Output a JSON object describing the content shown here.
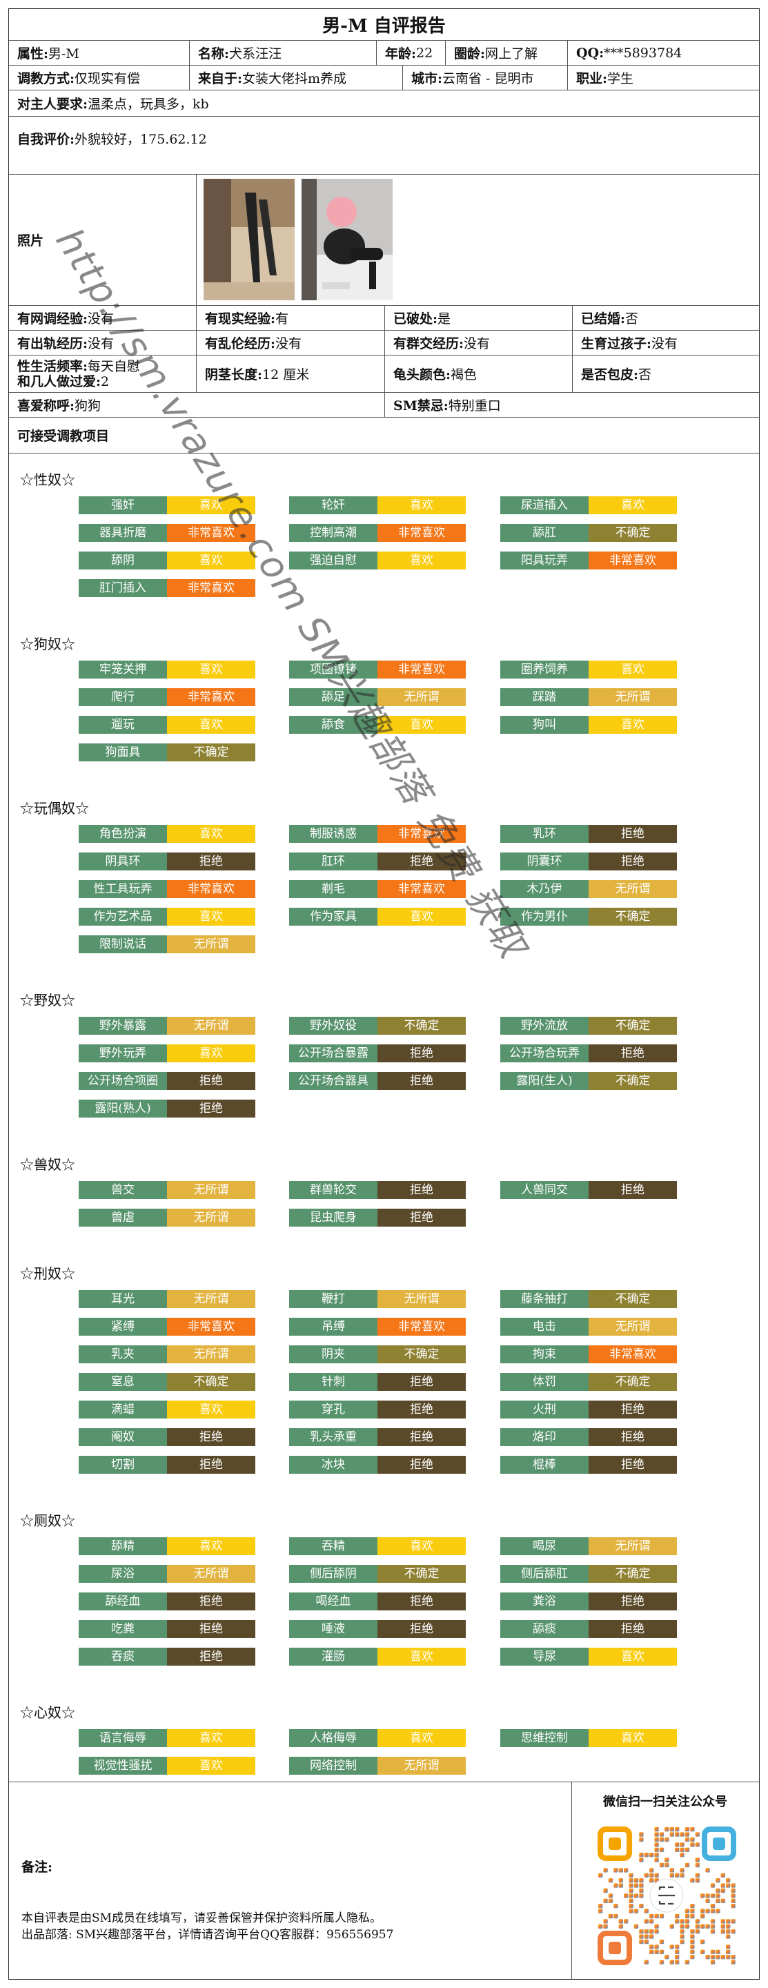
{
  "title": "男-M 自评报告",
  "info": {
    "row1": [
      {
        "label": "属性:",
        "value": "男-M"
      },
      {
        "label": "名称:",
        "value": "犬系汪汪"
      },
      {
        "label": "年龄:",
        "value": "22"
      },
      {
        "label": "圈龄:",
        "value": "网上了解"
      },
      {
        "label": "QQ:",
        "value": "***5893784"
      }
    ],
    "row2": [
      {
        "label": "调教方式:",
        "value": "仅现实有偿"
      },
      {
        "label": "来自于:",
        "value": "女装大佬抖m养成"
      },
      {
        "label": "城市:",
        "value": "云南省 - 昆明市"
      },
      {
        "label": "职业:",
        "value": "学生"
      }
    ],
    "demand": {
      "label": "对主人要求:",
      "value": "温柔点，玩具多，kb"
    },
    "self_eval": {
      "label": "自我评价:",
      "value": "外貌较好，175.62.12"
    },
    "photo_label": "照片",
    "grid": [
      [
        {
          "label": "有网调经验:",
          "value": "没有"
        },
        {
          "label": "有现实经验:",
          "value": "有"
        },
        {
          "label": "已破处:",
          "value": "是"
        },
        {
          "label": "已结婚:",
          "value": "否"
        }
      ],
      [
        {
          "label": "有出轨经历:",
          "value": "没有"
        },
        {
          "label": "有乱伦经历:",
          "value": "没有"
        },
        {
          "label": "有群交经历:",
          "value": "没有"
        },
        {
          "label": "生育过孩子:",
          "value": "没有"
        }
      ],
      [
        {
          "label": "性生活频率:",
          "value": "每天自慰",
          "label2": "和几人做过爱:",
          "value2": "2"
        },
        {
          "label": "阴茎长度:",
          "value": "12 厘米"
        },
        {
          "label": "龟头颜色:",
          "value": "褐色"
        },
        {
          "label": "是否包皮:",
          "value": "否"
        }
      ]
    ],
    "nickname": {
      "label": "喜爱称呼:",
      "value": "狗狗"
    },
    "taboo": {
      "label": "SM禁忌:",
      "value": "特别重口"
    },
    "projects_title": "可接受调教项目"
  },
  "colors": {
    "name_bg": "#57936d",
    "非常喜欢": "#f47617",
    "喜欢": "#f9cc0d",
    "无所谓": "#e3b33f",
    "不确定": "#8e8132",
    "拒绝": "#5a4a2a"
  },
  "sections": [
    {
      "title": "☆性奴☆",
      "items": [
        [
          "强奸",
          "喜欢"
        ],
        [
          "轮奸",
          "喜欢"
        ],
        [
          "尿道插入",
          "喜欢"
        ],
        [
          "器具折磨",
          "非常喜欢"
        ],
        [
          "控制高潮",
          "非常喜欢"
        ],
        [
          "舔肛",
          "不确定"
        ],
        [
          "舔阴",
          "喜欢"
        ],
        [
          "强迫自慰",
          "喜欢"
        ],
        [
          "阳具玩弄",
          "非常喜欢"
        ],
        [
          "肛门插入",
          "非常喜欢"
        ]
      ]
    },
    {
      "title": "☆狗奴☆",
      "items": [
        [
          "牢笼关押",
          "喜欢"
        ],
        [
          "项圈镣铐",
          "非常喜欢"
        ],
        [
          "圈养饲养",
          "喜欢"
        ],
        [
          "爬行",
          "非常喜欢"
        ],
        [
          "舔足",
          "无所谓"
        ],
        [
          "踩踏",
          "无所谓"
        ],
        [
          "遛玩",
          "喜欢"
        ],
        [
          "舔食",
          "喜欢"
        ],
        [
          "狗叫",
          "喜欢"
        ],
        [
          "狗面具",
          "不确定"
        ]
      ]
    },
    {
      "title": "☆玩偶奴☆",
      "items": [
        [
          "角色扮演",
          "喜欢"
        ],
        [
          "制服诱惑",
          "非常喜欢"
        ],
        [
          "乳环",
          "拒绝"
        ],
        [
          "阴具环",
          "拒绝"
        ],
        [
          "肛环",
          "拒绝"
        ],
        [
          "阴囊环",
          "拒绝"
        ],
        [
          "性工具玩弄",
          "非常喜欢"
        ],
        [
          "剃毛",
          "非常喜欢"
        ],
        [
          "木乃伊",
          "无所谓"
        ],
        [
          "作为艺术品",
          "喜欢"
        ],
        [
          "作为家具",
          "喜欢"
        ],
        [
          "作为男仆",
          "不确定"
        ],
        [
          "限制说话",
          "无所谓"
        ]
      ]
    },
    {
      "title": "☆野奴☆",
      "items": [
        [
          "野外暴露",
          "无所谓"
        ],
        [
          "野外奴役",
          "不确定"
        ],
        [
          "野外流放",
          "不确定"
        ],
        [
          "野外玩弄",
          "喜欢"
        ],
        [
          "公开场合暴露",
          "拒绝"
        ],
        [
          "公开场合玩弄",
          "拒绝"
        ],
        [
          "公开场合项圈",
          "拒绝"
        ],
        [
          "公开场合器具",
          "拒绝"
        ],
        [
          "露阳(生人)",
          "不确定"
        ],
        [
          "露阳(熟人)",
          "拒绝"
        ]
      ]
    },
    {
      "title": "☆兽奴☆",
      "items": [
        [
          "兽交",
          "无所谓"
        ],
        [
          "群兽轮交",
          "拒绝"
        ],
        [
          "人兽同交",
          "拒绝"
        ],
        [
          "兽虐",
          "无所谓"
        ],
        [
          "昆虫爬身",
          "拒绝"
        ]
      ]
    },
    {
      "title": "☆刑奴☆",
      "items": [
        [
          "耳光",
          "无所谓"
        ],
        [
          "鞭打",
          "无所谓"
        ],
        [
          "藤条抽打",
          "不确定"
        ],
        [
          "紧缚",
          "非常喜欢"
        ],
        [
          "吊缚",
          "非常喜欢"
        ],
        [
          "电击",
          "无所谓"
        ],
        [
          "乳夹",
          "无所谓"
        ],
        [
          "阴夹",
          "不确定"
        ],
        [
          "拘束",
          "非常喜欢"
        ],
        [
          "窒息",
          "不确定"
        ],
        [
          "针刺",
          "拒绝"
        ],
        [
          "体罚",
          "不确定"
        ],
        [
          "滴蜡",
          "喜欢"
        ],
        [
          "穿孔",
          "拒绝"
        ],
        [
          "火刑",
          "拒绝"
        ],
        [
          "阉奴",
          "拒绝"
        ],
        [
          "乳头承重",
          "拒绝"
        ],
        [
          "烙印",
          "拒绝"
        ],
        [
          "切割",
          "拒绝"
        ],
        [
          "冰块",
          "拒绝"
        ],
        [
          "棍棒",
          "拒绝"
        ]
      ]
    },
    {
      "title": "☆厕奴☆",
      "items": [
        [
          "舔精",
          "喜欢"
        ],
        [
          "吞精",
          "喜欢"
        ],
        [
          "喝尿",
          "无所谓"
        ],
        [
          "尿浴",
          "无所谓"
        ],
        [
          "侧后舔阴",
          "不确定"
        ],
        [
          "侧后舔肛",
          "不确定"
        ],
        [
          "舔经血",
          "拒绝"
        ],
        [
          "喝经血",
          "拒绝"
        ],
        [
          "粪浴",
          "拒绝"
        ],
        [
          "吃粪",
          "拒绝"
        ],
        [
          "唾液",
          "拒绝"
        ],
        [
          "舔痰",
          "拒绝"
        ],
        [
          "吞痰",
          "拒绝"
        ],
        [
          "灌肠",
          "喜欢"
        ],
        [
          "导尿",
          "喜欢"
        ]
      ]
    },
    {
      "title": "☆心奴☆",
      "items": [
        [
          "语言侮辱",
          "喜欢"
        ],
        [
          "人格侮辱",
          "喜欢"
        ],
        [
          "思维控制",
          "喜欢"
        ],
        [
          "视觉性骚扰",
          "喜欢"
        ],
        [
          "网络控制",
          "无所谓"
        ]
      ]
    }
  ],
  "footer": {
    "remark_label": "备注:",
    "note1": "本自评表是由SM成员在线填写，请妥善保管并保护资料所属人隐私。",
    "note2": "出品部落: SM兴趣部落平台，详情请咨询平台QQ客服群：956556957",
    "qr_title": "微信扫一扫关注公众号"
  },
  "watermark": "http://sm.vrazure.com SM兴趣部落 免费 获取"
}
